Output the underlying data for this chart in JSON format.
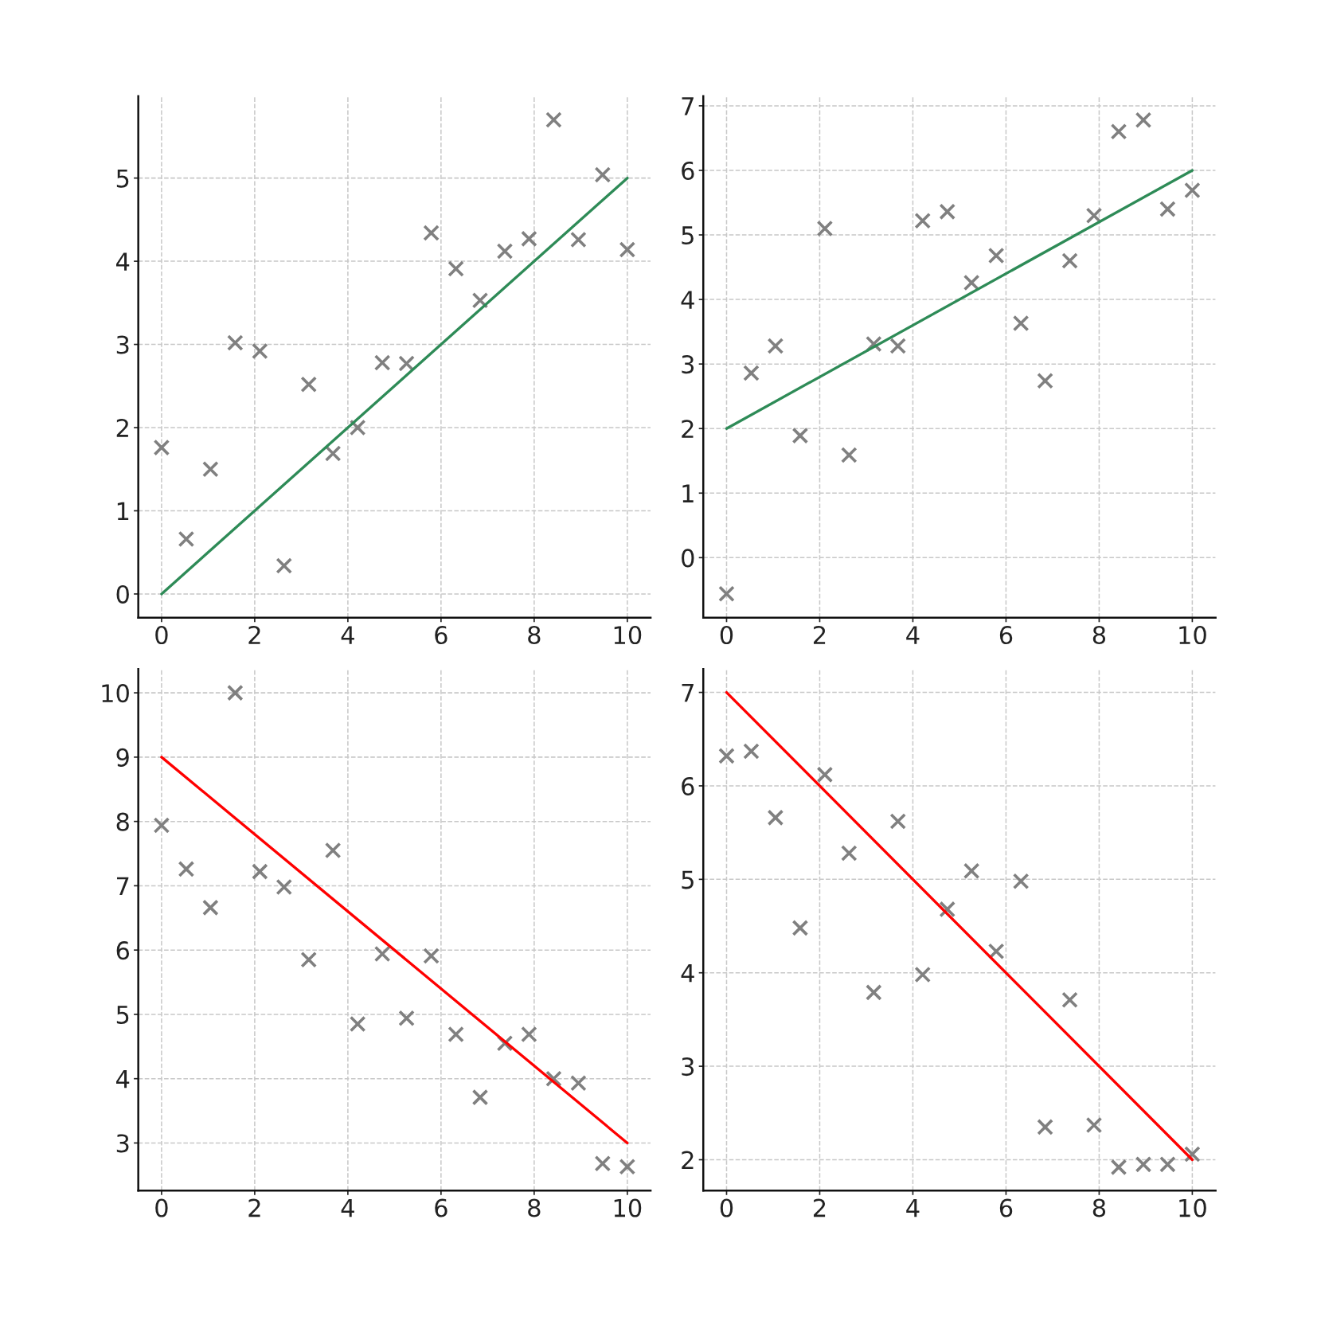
{
  "chart_data": [
    {
      "type": "scatter",
      "xlim": [
        -0.5,
        10.5
      ],
      "ylim": [
        -0.285,
        5.985
      ],
      "xticks": [
        0,
        2,
        4,
        6,
        8,
        10
      ],
      "yticks": [
        0,
        1,
        2,
        3,
        4,
        5
      ],
      "grid": true,
      "series": [
        {
          "marker": "cross",
          "color": "#808080",
          "x": [
            0,
            0.53,
            1.05,
            1.58,
            2.11,
            2.63,
            3.16,
            3.68,
            4.21,
            4.74,
            5.26,
            5.79,
            6.32,
            6.84,
            7.37,
            7.89,
            8.42,
            8.95,
            9.47,
            10
          ],
          "values": [
            1.76,
            0.66,
            1.5,
            3.02,
            2.92,
            0.34,
            2.52,
            1.69,
            2.0,
            2.78,
            2.77,
            4.34,
            3.91,
            3.53,
            4.12,
            4.27,
            5.7,
            4.26,
            5.04,
            4.14
          ]
        },
        {
          "type": "line",
          "line_style": "solid",
          "color": "#2e8b57",
          "x": [
            0,
            10
          ],
          "values": [
            0,
            5
          ]
        }
      ]
    },
    {
      "type": "scatter",
      "xlim": [
        -0.5,
        10.5
      ],
      "ylim": [
        -0.93,
        7.15
      ],
      "xticks": [
        0,
        2,
        4,
        6,
        8,
        10
      ],
      "yticks": [
        0,
        1,
        2,
        3,
        4,
        5,
        6,
        7
      ],
      "grid": true,
      "series": [
        {
          "marker": "cross",
          "color": "#808080",
          "x": [
            0,
            0.53,
            1.05,
            1.58,
            2.11,
            2.63,
            3.16,
            3.68,
            4.21,
            4.74,
            5.26,
            5.79,
            6.32,
            6.84,
            7.37,
            7.89,
            8.42,
            8.95,
            9.47,
            10
          ],
          "values": [
            -0.56,
            2.86,
            3.28,
            1.89,
            5.1,
            1.59,
            3.31,
            3.28,
            5.22,
            5.36,
            4.26,
            4.68,
            3.63,
            2.74,
            4.6,
            5.3,
            6.6,
            6.78,
            5.4,
            5.69
          ]
        },
        {
          "type": "line",
          "line_style": "solid",
          "color": "#2e8b57",
          "x": [
            0,
            10
          ],
          "values": [
            2,
            6
          ]
        }
      ]
    },
    {
      "type": "scatter",
      "xlim": [
        -0.5,
        10.5
      ],
      "ylim": [
        2.26,
        10.37
      ],
      "xticks": [
        0,
        2,
        4,
        6,
        8,
        10
      ],
      "yticks": [
        3,
        4,
        5,
        6,
        7,
        8,
        9,
        10
      ],
      "grid": true,
      "series": [
        {
          "marker": "cross",
          "color": "#808080",
          "x": [
            0,
            0.53,
            1.05,
            1.58,
            2.11,
            2.63,
            3.16,
            3.68,
            4.21,
            4.74,
            5.26,
            5.79,
            6.32,
            6.84,
            7.37,
            7.89,
            8.42,
            8.95,
            9.47,
            10
          ],
          "values": [
            7.94,
            7.26,
            6.66,
            10.0,
            7.22,
            6.98,
            5.85,
            7.55,
            4.85,
            5.94,
            4.94,
            5.91,
            4.69,
            3.71,
            4.55,
            4.69,
            4.0,
            3.93,
            2.68,
            2.63
          ]
        },
        {
          "type": "line",
          "line_style": "solid",
          "color": "#ff0000",
          "x": [
            0,
            10
          ],
          "values": [
            9,
            3
          ]
        }
      ]
    },
    {
      "type": "scatter",
      "xlim": [
        -0.5,
        10.5
      ],
      "ylim": [
        1.67,
        7.25
      ],
      "xticks": [
        0,
        2,
        4,
        6,
        8,
        10
      ],
      "yticks": [
        2,
        3,
        4,
        5,
        6,
        7
      ],
      "grid": true,
      "series": [
        {
          "marker": "cross",
          "color": "#808080",
          "x": [
            0,
            0.53,
            1.05,
            1.58,
            2.11,
            2.63,
            3.16,
            3.68,
            4.21,
            4.74,
            5.26,
            5.79,
            6.32,
            6.84,
            7.37,
            7.89,
            8.42,
            8.95,
            9.47,
            10
          ],
          "values": [
            6.32,
            6.37,
            5.66,
            4.48,
            6.12,
            5.28,
            3.79,
            5.62,
            3.98,
            4.68,
            5.09,
            4.23,
            4.98,
            2.35,
            3.71,
            2.37,
            1.92,
            1.95,
            1.95,
            2.06
          ]
        },
        {
          "type": "line",
          "line_style": "solid",
          "color": "#ff0000",
          "x": [
            0,
            10
          ],
          "values": [
            7,
            2
          ]
        }
      ]
    }
  ]
}
